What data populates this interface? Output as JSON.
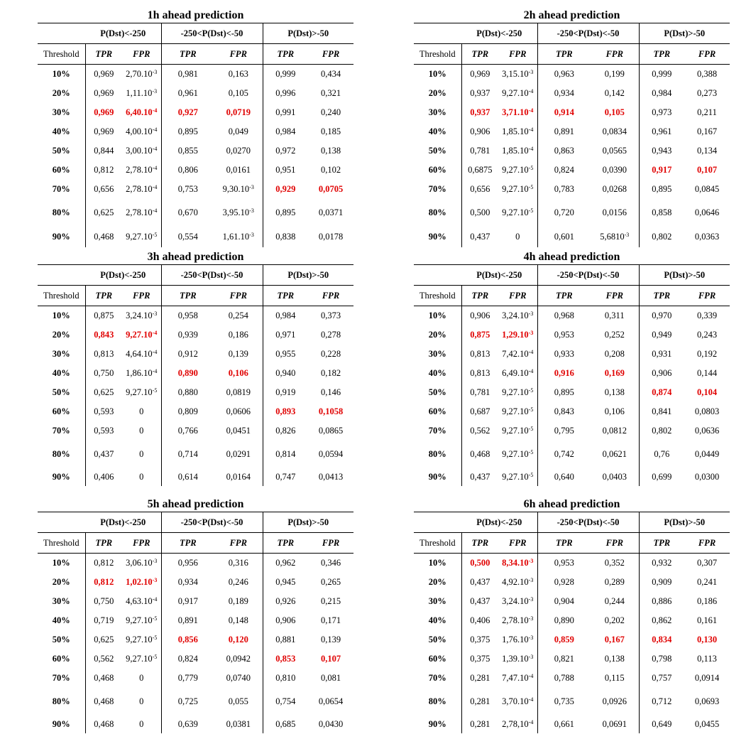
{
  "group_headers": [
    "P(Dst)<-250",
    "-250<P(Dst)<-50",
    "P(Dst)>-50"
  ],
  "sub_headers": [
    "Threshold",
    "TPR",
    "FPR",
    "TPR",
    "FPR",
    "TPR",
    "FPR"
  ],
  "highlight_color": "#e00000",
  "panels": [
    {
      "title": "1h ahead prediction",
      "rows": [
        {
          "c": [
            "10%",
            "0,969",
            "2,70.10^-3",
            "0,981",
            "0,163",
            "0,999",
            "0,434"
          ],
          "h": []
        },
        {
          "c": [
            "20%",
            "0,969",
            "1,11.10^-3",
            "0,961",
            "0,105",
            "0,996",
            "0,321"
          ],
          "h": []
        },
        {
          "c": [
            "30%",
            "0,969",
            "6,40.10^-4",
            "0,927",
            "0,0719",
            "0,991",
            "0,240"
          ],
          "h": [
            1,
            2,
            3,
            4
          ]
        },
        {
          "c": [
            "40%",
            "0,969",
            "4,00.10^-4",
            "0,895",
            "0,049",
            "0,984",
            "0,185"
          ],
          "h": []
        },
        {
          "c": [
            "50%",
            "0,844",
            "3,00.10^-4",
            "0,855",
            "0,0270",
            "0,972",
            "0,138"
          ],
          "h": []
        },
        {
          "c": [
            "60%",
            "0,812",
            "2,78.10^-4",
            "0,806",
            "0,0161",
            "0,951",
            "0,102"
          ],
          "h": []
        },
        {
          "c": [
            "70%",
            "0,656",
            "2,78.10^-4",
            "0,753",
            "9,30.10^-3",
            "0,929",
            "0,0705"
          ],
          "h": [
            5,
            6
          ]
        },
        {
          "c": [
            "80%",
            "0,625",
            "2,78.10^-4",
            "0,670",
            "3,95.10^-3",
            "0,895",
            "0,0371"
          ],
          "h": []
        },
        {
          "c": [
            "90%",
            "0,468",
            "9,27.10^-5",
            "0,554",
            "1,61.10^-3",
            "0,838",
            "0,0178"
          ],
          "h": []
        }
      ]
    },
    {
      "title": "2h ahead prediction",
      "rows": [
        {
          "c": [
            "10%",
            "0,969",
            "3,15.10^-3",
            "0,963",
            "0,199",
            "0,999",
            "0,388"
          ],
          "h": []
        },
        {
          "c": [
            "20%",
            "0,937",
            "9,27.10^-4",
            "0,934",
            "0,142",
            "0,984",
            "0,273"
          ],
          "h": []
        },
        {
          "c": [
            "30%",
            "0,937",
            "3,71.10^-4",
            "0,914",
            "0,105",
            "0,973",
            "0,211"
          ],
          "h": [
            1,
            2,
            3,
            4
          ]
        },
        {
          "c": [
            "40%",
            "0,906",
            "1,85.10^-4",
            "0,891",
            "0,0834",
            "0,961",
            "0,167"
          ],
          "h": []
        },
        {
          "c": [
            "50%",
            "0,781",
            "1,85.10^-4",
            "0,863",
            "0,0565",
            "0,943",
            "0,134"
          ],
          "h": []
        },
        {
          "c": [
            "60%",
            "0,6875",
            "9,27.10^-5",
            "0,824",
            "0,0390",
            "0,917",
            "0,107"
          ],
          "h": [
            5,
            6
          ]
        },
        {
          "c": [
            "70%",
            "0,656",
            "9,27.10^-5",
            "0,783",
            "0,0268",
            "0,895",
            "0,0845"
          ],
          "h": []
        },
        {
          "c": [
            "80%",
            "0,500",
            "9,27.10^-5",
            "0,720",
            "0,0156",
            "0,858",
            "0,0646"
          ],
          "h": []
        },
        {
          "c": [
            "90%",
            "0,437",
            "0",
            "0,601",
            "5,6810^-3",
            "0,802",
            "0,0363"
          ],
          "h": []
        }
      ]
    },
    {
      "title": "3h ahead prediction",
      "rows": [
        {
          "c": [
            "10%",
            "0,875",
            "3,24.10^-3",
            "0,958",
            "0,254",
            "0,984",
            "0,373"
          ],
          "h": []
        },
        {
          "c": [
            "20%",
            "0,843",
            "9,27.10^-4",
            "0,939",
            "0,186",
            "0,971",
            "0,278"
          ],
          "h": [
            1,
            2
          ]
        },
        {
          "c": [
            "30%",
            "0,813",
            "4,64.10^-4",
            "0,912",
            "0,139",
            "0,955",
            "0,228"
          ],
          "h": []
        },
        {
          "c": [
            "40%",
            "0,750",
            "1,86.10^-4",
            "0,890",
            "0,106",
            "0,940",
            "0,182"
          ],
          "h": [
            3,
            4
          ]
        },
        {
          "c": [
            "50%",
            "0,625",
            "9,27.10^-5",
            "0,880",
            "0,0819",
            "0,919",
            "0,146"
          ],
          "h": []
        },
        {
          "c": [
            "60%",
            "0,593",
            "0",
            "0,809",
            "0,0606",
            "0,893",
            "0,1058"
          ],
          "h": [
            5,
            6
          ]
        },
        {
          "c": [
            "70%",
            "0,593",
            "0",
            "0,766",
            "0,0451",
            "0,826",
            "0,0865"
          ],
          "h": []
        },
        {
          "c": [
            "80%",
            "0,437",
            "0",
            "0,714",
            "0,0291",
            "0,814",
            "0,0594"
          ],
          "h": []
        },
        {
          "c": [
            "90%",
            "0,406",
            "0",
            "0,614",
            "0,0164",
            "0,747",
            "0,0413"
          ],
          "h": []
        }
      ]
    },
    {
      "title": "4h ahead prediction",
      "rows": [
        {
          "c": [
            "10%",
            "0,906",
            "3,24.10^-3",
            "0,968",
            "0,311",
            "0,970",
            "0,339"
          ],
          "h": []
        },
        {
          "c": [
            "20%",
            "0,875",
            "1,29.10^-3",
            "0,953",
            "0,252",
            "0,949",
            "0,243"
          ],
          "h": [
            1,
            2
          ]
        },
        {
          "c": [
            "30%",
            "0,813",
            "7,42.10^-4",
            "0,933",
            "0,208",
            "0,931",
            "0,192"
          ],
          "h": []
        },
        {
          "c": [
            "40%",
            "0,813",
            "6,49.10^-4",
            "0,916",
            "0,169",
            "0,906",
            "0,144"
          ],
          "h": [
            3,
            4
          ]
        },
        {
          "c": [
            "50%",
            "0,781",
            "9,27.10^-5",
            "0,895",
            "0,138",
            "0,874",
            "0,104"
          ],
          "h": [
            5,
            6
          ]
        },
        {
          "c": [
            "60%",
            "0,687",
            "9,27.10^-5",
            "0,843",
            "0,106",
            "0,841",
            "0,0803"
          ],
          "h": []
        },
        {
          "c": [
            "70%",
            "0,562",
            "9,27.10^-5",
            "0,795",
            "0,0812",
            "0,802",
            "0,0636"
          ],
          "h": []
        },
        {
          "c": [
            "80%",
            "0,468",
            "9,27.10^-5",
            "0,742",
            "0,0621",
            "0,76",
            "0,0449"
          ],
          "h": []
        },
        {
          "c": [
            "90%",
            "0,437",
            "9,27.10^-5",
            "0,640",
            "0,0403",
            "0,699",
            "0,0300"
          ],
          "h": []
        }
      ]
    },
    {
      "title": "5h ahead prediction",
      "rows": [
        {
          "c": [
            "10%",
            "0,812",
            "3,06.10^-3",
            "0,956",
            "0,316",
            "0,962",
            "0,346"
          ],
          "h": []
        },
        {
          "c": [
            "20%",
            "0,812",
            "1,02.10^-3",
            "0,934",
            "0,246",
            "0,945",
            "0,265"
          ],
          "h": [
            1,
            2
          ]
        },
        {
          "c": [
            "30%",
            "0,750",
            "4,63.10^-4",
            "0,917",
            "0,189",
            "0,926",
            "0,215"
          ],
          "h": []
        },
        {
          "c": [
            "40%",
            "0,719",
            "9,27.10^-5",
            "0,891",
            "0,148",
            "0,906",
            "0,171"
          ],
          "h": []
        },
        {
          "c": [
            "50%",
            "0,625",
            "9,27.10^-5",
            "0,856",
            "0,120",
            "0,881",
            "0,139"
          ],
          "h": [
            3,
            4
          ]
        },
        {
          "c": [
            "60%",
            "0,562",
            "9,27.10^-5",
            "0,824",
            "0,0942",
            "0,853",
            "0,107"
          ],
          "h": [
            5,
            6
          ]
        },
        {
          "c": [
            "70%",
            "0,468",
            "0",
            "0,779",
            "0,0740",
            "0,810",
            "0,081"
          ],
          "h": []
        },
        {
          "c": [
            "80%",
            "0,468",
            "0",
            "0,725",
            "0,055",
            "0,754",
            "0,0654"
          ],
          "h": []
        },
        {
          "c": [
            "90%",
            "0,468",
            "0",
            "0,639",
            "0,0381",
            "0,685",
            "0,0430"
          ],
          "h": []
        }
      ]
    },
    {
      "title": "6h ahead prediction",
      "rows": [
        {
          "c": [
            "10%",
            "0,500",
            "8,34.10^-3",
            "0,953",
            "0,352",
            "0,932",
            "0,307"
          ],
          "h": [
            1,
            2
          ]
        },
        {
          "c": [
            "20%",
            "0,437",
            "4,92.10^-3",
            "0,928",
            "0,289",
            "0,909",
            "0,241"
          ],
          "h": []
        },
        {
          "c": [
            "30%",
            "0,437",
            "3,24.10^-3",
            "0,904",
            "0,244",
            "0,886",
            "0,186"
          ],
          "h": []
        },
        {
          "c": [
            "40%",
            "0,406",
            "2,78.10^-3",
            "0,890",
            "0,202",
            "0,862",
            "0,161"
          ],
          "h": []
        },
        {
          "c": [
            "50%",
            "0,375",
            "1,76.10^-3",
            "0,859",
            "0,167",
            "0,834",
            "0,130"
          ],
          "h": [
            3,
            4,
            5,
            6
          ]
        },
        {
          "c": [
            "60%",
            "0,375",
            "1,39.10^-3",
            "0,821",
            "0,138",
            "0,798",
            "0,113"
          ],
          "h": []
        },
        {
          "c": [
            "70%",
            "0,281",
            "7,47.10^-4",
            "0,788",
            "0,115",
            "0,757",
            "0,0914"
          ],
          "h": []
        },
        {
          "c": [
            "80%",
            "0,281",
            "3,70.10^-4",
            "0,735",
            "0,0926",
            "0,712",
            "0,0693"
          ],
          "h": []
        },
        {
          "c": [
            "90%",
            "0,281",
            "2,78,10^-4",
            "0,661",
            "0,0691",
            "0,649",
            "0,0455"
          ],
          "h": []
        }
      ]
    }
  ]
}
